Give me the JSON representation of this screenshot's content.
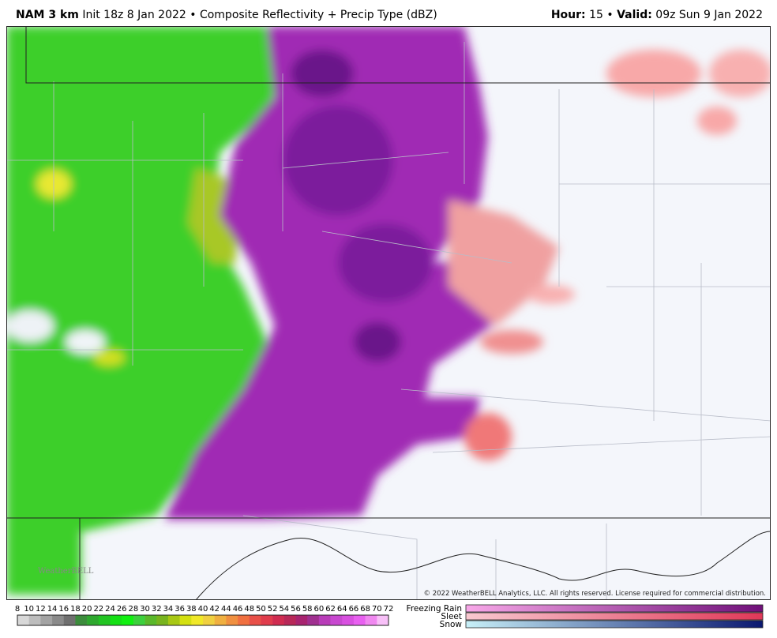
{
  "header": {
    "model": "NAM 3 km",
    "init": "Init 18z 8 Jan 2022 • Composite Reflectivity + Precip Type (dBZ)",
    "hour_label": "Hour:",
    "hour_text": "15 •",
    "valid_label": "Valid:",
    "valid_text": "09z Sun 9 Jan 2022"
  },
  "map": {
    "copyright": "© 2022 WeatherBELL Analytics, LLC. All rights reserved. License required for commercial distribution.",
    "watermark": "WeatherBELL"
  },
  "legend": {
    "labels": [
      8,
      10,
      12,
      14,
      16,
      18,
      20,
      22,
      24,
      26,
      28,
      30,
      32,
      34,
      36,
      38,
      40,
      42,
      44,
      46,
      48,
      50,
      52,
      54,
      56,
      58,
      60,
      62,
      64,
      66,
      68,
      70,
      72
    ],
    "colors": [
      "#d8d8d8",
      "#bdbdbd",
      "#a3a3a3",
      "#8a8a8a",
      "#6f6f6f",
      "#3c8c3c",
      "#2ea82e",
      "#22c422",
      "#14e014",
      "#10f010",
      "#3cd03c",
      "#5ab82a",
      "#78b41e",
      "#a8c814",
      "#d4e010",
      "#f0e828",
      "#f0d040",
      "#f0b040",
      "#f09040",
      "#f07040",
      "#e85048",
      "#e03c4c",
      "#d02c50",
      "#b82858",
      "#a82470",
      "#a03090",
      "#b83cb8",
      "#c848d0",
      "#d850e0",
      "#e860f0",
      "#f088f0",
      "#f8c0f8"
    ],
    "types": [
      {
        "name": "Freezing Rain",
        "from": "#f8a8e8",
        "to": "#70107a"
      },
      {
        "name": "Sleet",
        "from": "#f8c8d0",
        "to": "#e03858"
      },
      {
        "name": "Snow",
        "from": "#c8f0f8",
        "to": "#0a1870"
      }
    ]
  }
}
